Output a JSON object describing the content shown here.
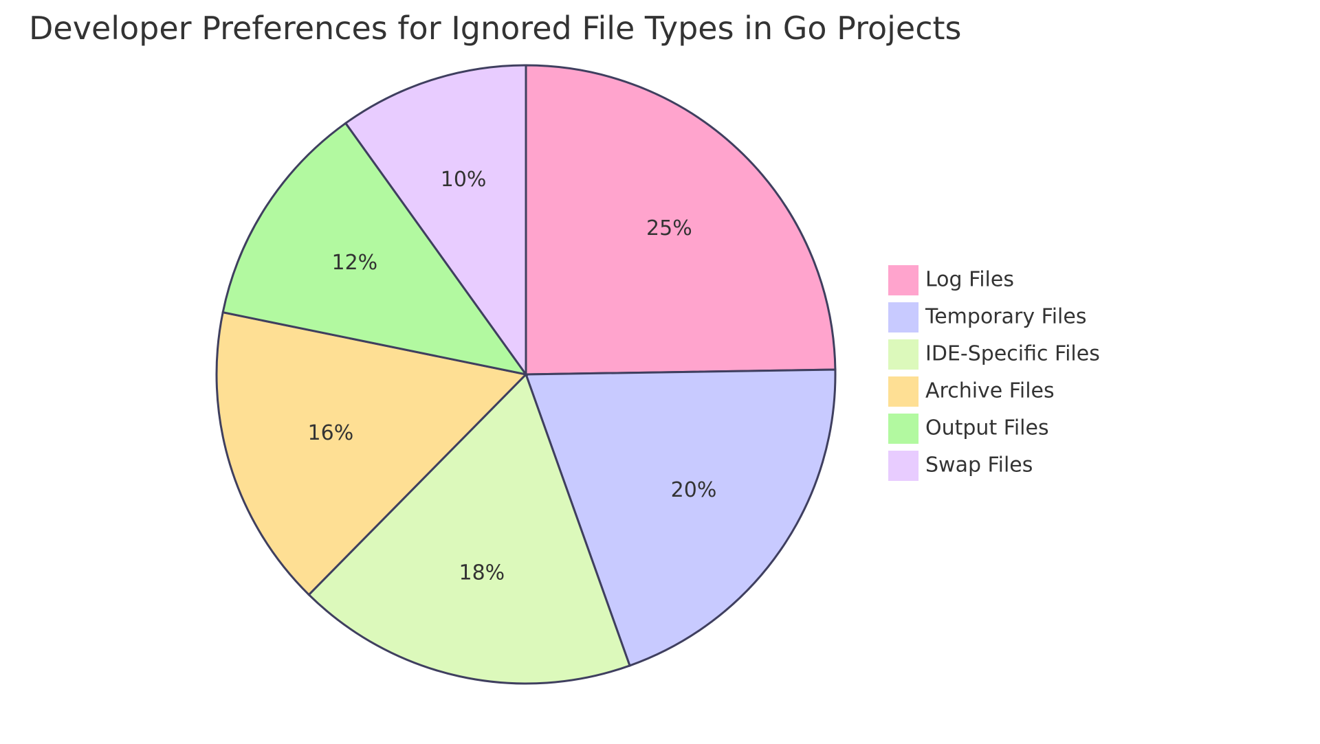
{
  "chart_data": {
    "type": "pie",
    "title": "Developer Preferences for Ignored File Types in Go Projects",
    "start_angle_deg": 0,
    "direction": "clockwise",
    "legend_position": "right",
    "slices": [
      {
        "label": "Log Files",
        "value": 25,
        "display": "25%",
        "color": "#ffa4cd"
      },
      {
        "label": "Temporary Files",
        "value": 20,
        "display": "20%",
        "color": "#c8caff"
      },
      {
        "label": "IDE-Specific Files",
        "value": 18,
        "display": "18%",
        "color": "#dcf9bb"
      },
      {
        "label": "Archive Files",
        "value": 16,
        "display": "16%",
        "color": "#fedf94"
      },
      {
        "label": "Output Files",
        "value": 12,
        "display": "12%",
        "color": "#b2f9a0"
      },
      {
        "label": "Swap Files",
        "value": 10,
        "display": "10%",
        "color": "#e8ccff"
      }
    ],
    "border_color": "#3f3f5f",
    "text_color": "#333333"
  }
}
